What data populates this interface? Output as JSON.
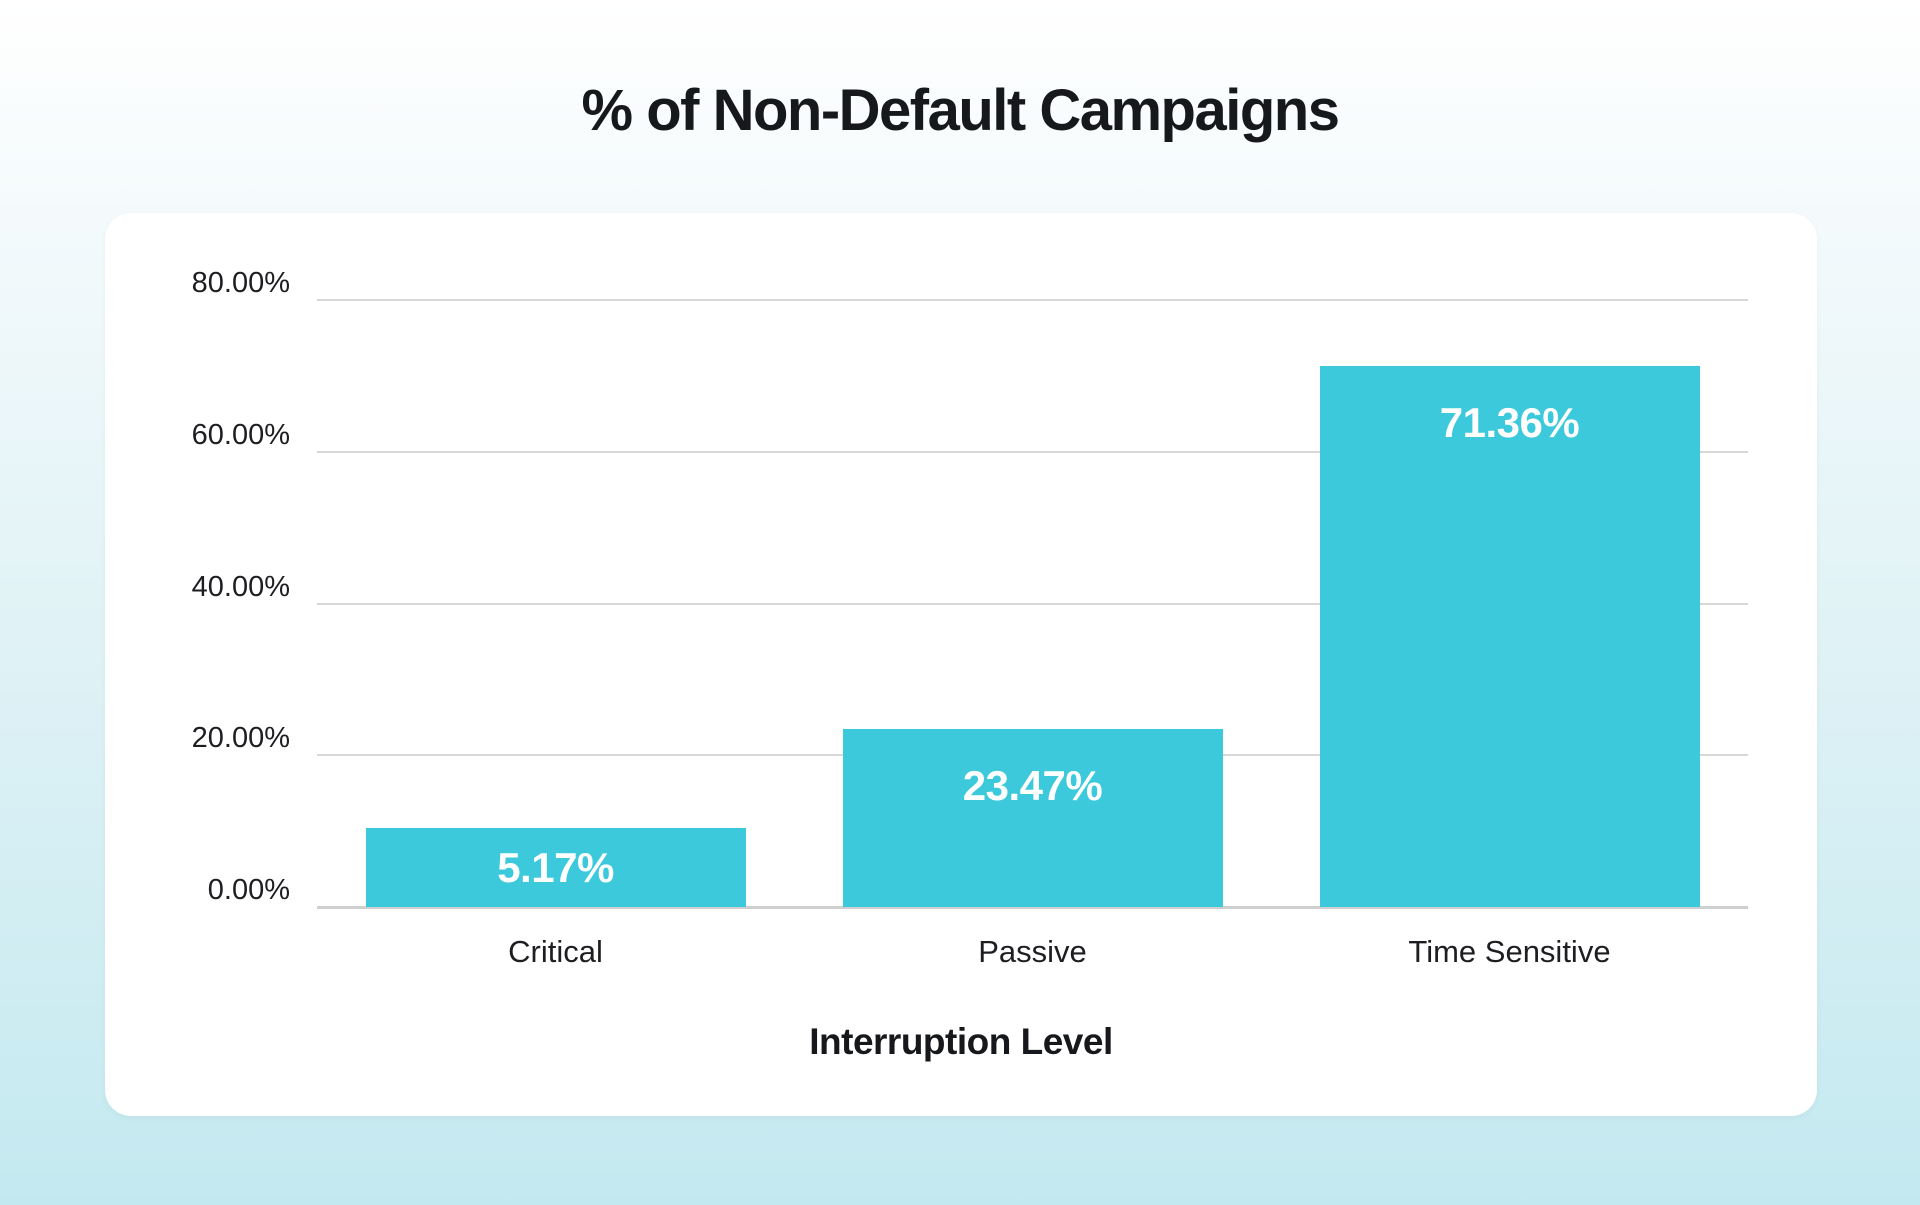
{
  "chart_data": {
    "type": "bar",
    "title": "% of Non-Default Campaigns",
    "xlabel": "Interruption Level",
    "categories": [
      "Critical",
      "Passive",
      "Time Sensitive"
    ],
    "values": [
      5.17,
      23.47,
      71.36
    ],
    "value_labels": [
      "5.17%",
      "23.47%",
      "71.36%"
    ],
    "ylim": [
      0,
      80
    ],
    "yticks": [
      {
        "value": 80,
        "label": "80.00%"
      },
      {
        "value": 60,
        "label": "60.00%"
      },
      {
        "value": 40,
        "label": "40.00%"
      },
      {
        "value": 20,
        "label": "20.00%"
      },
      {
        "value": 0,
        "label": "0.00%"
      }
    ],
    "grid": true,
    "legend": false,
    "bar_color": "#3cc9db",
    "value_label_color": "#ffffff",
    "gridline_color": "#d8d8d8",
    "text_color": "#1d1e21"
  }
}
